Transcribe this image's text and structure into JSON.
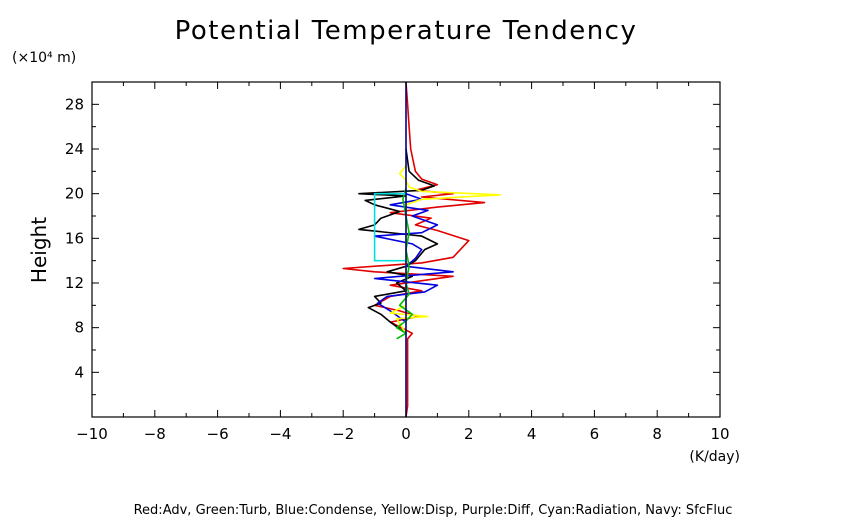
{
  "chart_data": {
    "type": "line",
    "title": "Potential Temperature Tendency",
    "ylabel": "Height",
    "yunit": "(×10⁴ m)",
    "xunit": "(K/day)",
    "xlim": [
      -10,
      10
    ],
    "ylim": [
      0,
      30
    ],
    "xticks": [
      -10,
      -8,
      -6,
      -4,
      -2,
      0,
      2,
      4,
      6,
      8,
      10
    ],
    "xtick_labels": [
      "−10",
      "−8",
      "−6",
      "−4",
      "−2",
      "0",
      "2",
      "4",
      "6",
      "8",
      "10"
    ],
    "yticks": [
      4,
      8,
      12,
      16,
      20,
      24,
      28
    ],
    "ytick_labels": [
      "4",
      "8",
      "12",
      "16",
      "20",
      "24",
      "28"
    ],
    "grid": false,
    "caption": "Red:Adv, Green:Turb, Blue:Condense, Yellow:Disp, Purple:Diff, Cyan:Radiation, Navy: SfcFluc",
    "series": [
      {
        "color": "#e00000",
        "points": [
          [
            0.0,
            0
          ],
          [
            0.05,
            1.0
          ],
          [
            0.05,
            5
          ],
          [
            0.05,
            7
          ],
          [
            0.2,
            7.5
          ],
          [
            -0.5,
            8.5
          ],
          [
            0.4,
            9.0
          ],
          [
            -0.2,
            9.5
          ],
          [
            -1.0,
            10.0
          ],
          [
            -0.5,
            10.8
          ],
          [
            0.5,
            11.3
          ],
          [
            -0.5,
            11.8
          ],
          [
            1.5,
            12.6
          ],
          [
            -1.0,
            13.0
          ],
          [
            -2.0,
            13.3
          ],
          [
            0.5,
            13.8
          ],
          [
            1.5,
            14.3
          ],
          [
            2.0,
            15.8
          ],
          [
            1.0,
            16.7
          ],
          [
            0.3,
            17.2
          ],
          [
            0.8,
            17.8
          ],
          [
            -0.5,
            18.3
          ],
          [
            1.0,
            18.8
          ],
          [
            2.5,
            19.2
          ],
          [
            0.5,
            19.7
          ],
          [
            1.5,
            20.0
          ],
          [
            0.3,
            20.3
          ],
          [
            1.0,
            20.8
          ],
          [
            0.5,
            21.3
          ],
          [
            0.3,
            22.0
          ],
          [
            0.15,
            24
          ],
          [
            0.1,
            26
          ],
          [
            0.05,
            28
          ],
          [
            0.0,
            30
          ]
        ]
      },
      {
        "color": "#000000",
        "points": [
          [
            0.0,
            7.5
          ],
          [
            -0.5,
            8.5
          ],
          [
            -0.8,
            9.2
          ],
          [
            -1.2,
            9.8
          ],
          [
            -0.8,
            10.2
          ],
          [
            -1.0,
            10.8
          ],
          [
            0.0,
            11.3
          ],
          [
            -0.3,
            12.0
          ],
          [
            0.2,
            12.6
          ],
          [
            -0.6,
            13.0
          ],
          [
            0.0,
            13.5
          ],
          [
            0.3,
            14.0
          ],
          [
            0.6,
            15.0
          ],
          [
            1.0,
            15.5
          ],
          [
            0.5,
            16.2
          ],
          [
            -1.5,
            16.8
          ],
          [
            -1.0,
            17.2
          ],
          [
            -0.8,
            17.8
          ],
          [
            -0.2,
            18.4
          ],
          [
            -1.0,
            19.0
          ],
          [
            -1.3,
            19.4
          ],
          [
            0.0,
            19.8
          ],
          [
            -1.5,
            20.0
          ],
          [
            0.5,
            20.3
          ],
          [
            0.9,
            20.7
          ],
          [
            0.4,
            21.2
          ],
          [
            0.1,
            22
          ],
          [
            0.0,
            24
          ]
        ]
      },
      {
        "color": "#0000e0",
        "points": [
          [
            0.0,
            8.5
          ],
          [
            -0.5,
            9.5
          ],
          [
            -0.9,
            10.2
          ],
          [
            -0.6,
            10.8
          ],
          [
            0.6,
            11.2
          ],
          [
            1.0,
            11.8
          ],
          [
            -1.0,
            12.4
          ],
          [
            1.5,
            13.0
          ],
          [
            0.0,
            13.5
          ],
          [
            0.3,
            14.2
          ],
          [
            0.5,
            15.0
          ],
          [
            0.2,
            15.5
          ],
          [
            -1.0,
            16.2
          ],
          [
            0.5,
            16.5
          ],
          [
            1.0,
            17.2
          ],
          [
            0.2,
            18.0
          ],
          [
            0.7,
            18.5
          ],
          [
            -0.5,
            19.0
          ],
          [
            0.5,
            19.5
          ],
          [
            0.0,
            20.0
          ]
        ]
      },
      {
        "color": "#ffff00",
        "points": [
          [
            0.0,
            7.5
          ],
          [
            -0.3,
            8.8
          ],
          [
            0.7,
            9.0
          ],
          [
            -0.5,
            9.3
          ],
          [
            0.0,
            10.0
          ],
          [
            0.0,
            19.0
          ],
          [
            0.5,
            19.5
          ],
          [
            3.0,
            19.9
          ],
          [
            0.5,
            20.2
          ],
          [
            0.1,
            20.6
          ],
          [
            0.0,
            21.2
          ],
          [
            -0.2,
            21.8
          ],
          [
            0.0,
            22.5
          ]
        ]
      },
      {
        "color": "#00c000",
        "points": [
          [
            -0.3,
            7.0
          ],
          [
            0.0,
            7.5
          ],
          [
            -0.3,
            8.0
          ],
          [
            0.0,
            8.6
          ],
          [
            0.2,
            9.2
          ],
          [
            -0.2,
            10.0
          ],
          [
            0.1,
            11.0
          ],
          [
            0.0,
            12.0
          ],
          [
            0.1,
            13.5
          ],
          [
            0.0,
            15
          ],
          [
            0.1,
            16.5
          ],
          [
            0.0,
            18
          ],
          [
            -0.1,
            19.5
          ],
          [
            0.0,
            20.5
          ]
        ]
      },
      {
        "color": "#00e0e0",
        "points": [
          [
            0.0,
            14.0
          ],
          [
            -1.0,
            14.0
          ],
          [
            -1.0,
            20.0
          ],
          [
            0.0,
            20.0
          ]
        ]
      },
      {
        "color": "#000080",
        "points": [
          [
            0.0,
            0
          ],
          [
            0.0,
            30
          ]
        ]
      }
    ]
  }
}
